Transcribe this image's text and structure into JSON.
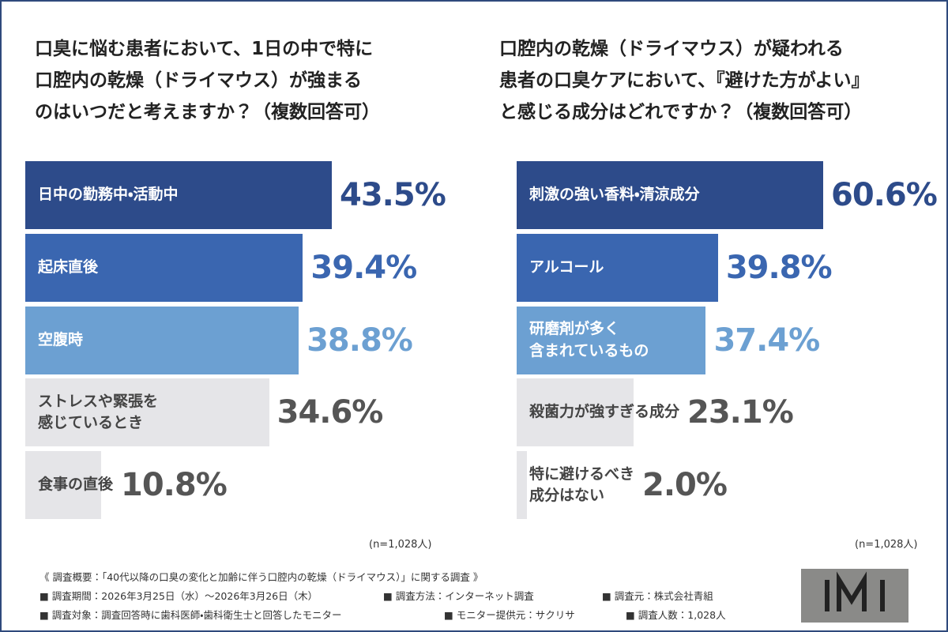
{
  "chart_data": [
    {
      "type": "bar",
      "orientation": "horizontal",
      "title": [
        "口臭に悩む患者において、1日の中で特に",
        "口腔内の乾燥（ドライマウス）が強まる",
        "のはいつだと考えますか？（複数回答可）"
      ],
      "categories": [
        "日中の勤務中・活動中",
        "起床直後",
        "空腹時",
        "ストレスや緊張を\n感じているとき",
        "食事の直後"
      ],
      "values": [
        43.5,
        39.4,
        38.8,
        34.6,
        10.8
      ],
      "value_labels": [
        "43.5%",
        "39.4%",
        "38.8%",
        "34.6%",
        "10.8%"
      ],
      "colors": [
        "#2d4b8a",
        "#3a66b0",
        "#6ca0d2",
        "#e5e5e8",
        "#e5e5e8"
      ],
      "note": "(n=1,028人)"
    },
    {
      "type": "bar",
      "orientation": "horizontal",
      "title": [
        "口腔内の乾燥（ドライマウス）が疑われる",
        "患者の口臭ケアにおいて、『避けた方がよい』",
        "と感じる成分はどれですか？（複数回答可）"
      ],
      "categories": [
        "刺激の強い香料・清涼成分",
        "アルコール",
        "研磨剤が多く\n含まれているもの",
        "殺菌力が強すぎる成分",
        "特に避けるべき\n成分はない"
      ],
      "values": [
        60.6,
        39.8,
        37.4,
        23.1,
        2.0
      ],
      "value_labels": [
        "60.6%",
        "39.8%",
        "37.4%",
        "23.1%",
        "2.0%"
      ],
      "colors": [
        "#2d4b8a",
        "#3a66b0",
        "#6ca0d2",
        "#e5e5e8",
        "#e5e5e8"
      ],
      "note": "(n=1,028人)"
    }
  ],
  "footer": {
    "items": [
      "《 調査概要：「40代以降の口臭の変化と加齢に伴う口腔内の乾燥（ドライマウス）」に関する調査 》",
      "■ 調査期間：2026年3月25日（水）～2026年3月26日（木）",
      "■ 調査方法：インターネット調査",
      "■ 調査元：株式会社青組",
      "■ 調査対象：調査回答時に歯科医師・歯科衛生士と回答したモニター",
      "■ モニター提供元：サクリサ",
      "■ 調査人数：1,028人"
    ]
  }
}
